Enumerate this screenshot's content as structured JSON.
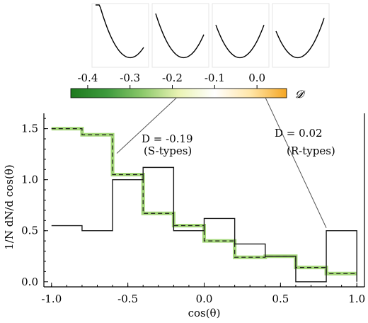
{
  "chart_data": {
    "type": "histogram",
    "xlabel": "cos(θ)",
    "ylabel": "1/N dN/d cos(θ)",
    "xlim": [
      -1.05,
      1.05
    ],
    "ylim": [
      -0.05,
      1.65
    ],
    "x_ticks": [
      -1.0,
      -0.5,
      0.0,
      0.5,
      1.0
    ],
    "x_tick_labels": [
      "-1.0",
      "-0.5",
      "0.0",
      "0.5",
      "1.0"
    ],
    "y_ticks": [
      0.0,
      0.5,
      1.0,
      1.5
    ],
    "y_tick_labels": [
      "0.0",
      "0.5",
      "1.0",
      "1.5"
    ],
    "bin_edges": [
      -1.0,
      -0.8,
      -0.6,
      -0.4,
      -0.2,
      0.0,
      0.2,
      0.4,
      0.6,
      0.8,
      1.0
    ],
    "series": [
      {
        "label": "D = 0.02",
        "style": "solid",
        "color": "#1a1a1a",
        "values": [
          0.55,
          0.5,
          1.0,
          1.12,
          0.5,
          0.62,
          0.37,
          0.25,
          0.0,
          0.5
        ]
      },
      {
        "label": "D = -0.19",
        "style": "dashed",
        "color": "#1a1a1a",
        "glow_color": "#9ad36a",
        "values": [
          1.5,
          1.44,
          1.05,
          0.67,
          0.55,
          0.4,
          0.24,
          0.25,
          0.14,
          0.08
        ]
      }
    ],
    "colorbar": {
      "symbol": "𝓓",
      "range": [
        -0.44,
        0.07
      ],
      "ticks": [
        -0.4,
        -0.3,
        -0.2,
        -0.1,
        0.0
      ],
      "tick_labels": [
        "-0.4",
        "-0.3",
        "-0.2",
        "-0.1",
        "0.0"
      ],
      "colors": [
        "#1e7a1e",
        "#3d9a3d",
        "#8cc96b",
        "#eaf3b4",
        "#ffffff",
        "#ffe6a8",
        "#f5a623"
      ]
    },
    "annotations": [
      {
        "line1": "D = -0.19",
        "line2": "(S-types)",
        "colorbar_value": -0.19,
        "target_x": -0.6,
        "target_y": 1.05
      },
      {
        "line1": "D = 0.02",
        "line2": "(R-types)",
        "colorbar_value": 0.02,
        "target_x": 0.8,
        "target_y": 0.5
      }
    ],
    "insets": [
      {
        "minimum_x": 0.72
      },
      {
        "minimum_x": 0.58
      },
      {
        "minimum_x": 0.5
      },
      {
        "minimum_x": 0.45
      }
    ]
  }
}
